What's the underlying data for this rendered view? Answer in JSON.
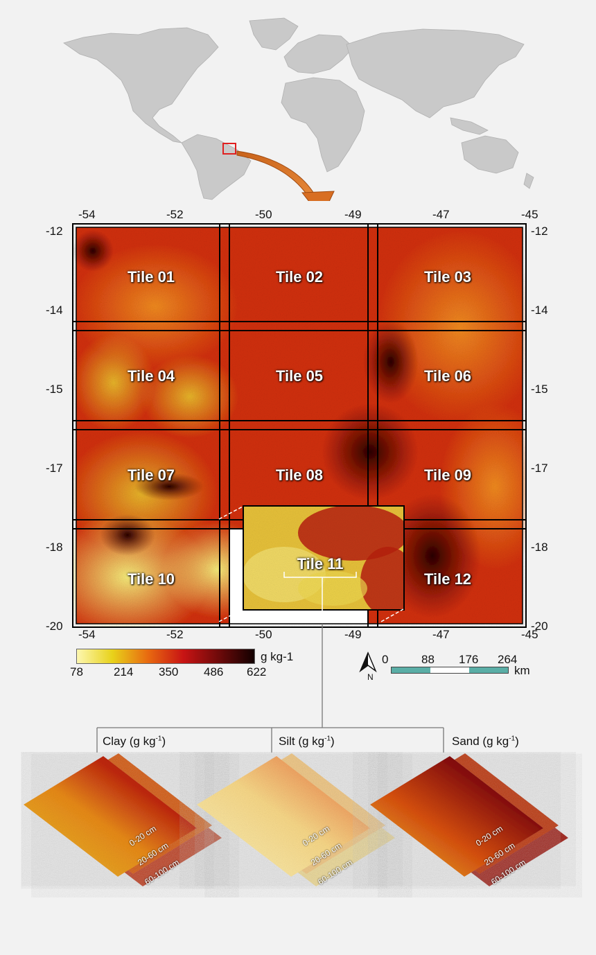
{
  "map": {
    "top_ticks": [
      "-54",
      "-52",
      "-50",
      "-49",
      "-47",
      "-45"
    ],
    "bottom_ticks": [
      "-54",
      "-52",
      "-50",
      "-49",
      "-47",
      "-45"
    ],
    "left_ticks": [
      "-12",
      "-14",
      "-15",
      "-17",
      "-18",
      "-20"
    ],
    "right_ticks": [
      "-12",
      "-14",
      "-15",
      "-17",
      "-18",
      "-20"
    ],
    "tiles": [
      "Tile 01",
      "Tile 02",
      "Tile 03",
      "Tile 04",
      "Tile 05",
      "Tile 06",
      "Tile 07",
      "Tile 08",
      "Tile 09",
      "Tile 10",
      "Tile 11",
      "Tile 12"
    ]
  },
  "legend": {
    "unit": "g kg-1",
    "values": [
      "78",
      "214",
      "350",
      "486",
      "622"
    ],
    "colors": [
      "#fdf7b0",
      "#e8d21a",
      "#e86a10",
      "#c81414",
      "#6e0a0a",
      "#120000"
    ]
  },
  "scalebar": {
    "north": "N",
    "values": [
      "0",
      "88",
      "176",
      "264"
    ],
    "unit": "km",
    "color": "#5aaea6"
  },
  "layers": [
    {
      "title": "Clay (g kg",
      "sup": "-1",
      "close": ")",
      "depths": [
        "0-20 cm",
        "20-60 cm",
        "60-100 cm"
      ]
    },
    {
      "title": "Silt (g kg",
      "sup": "-1",
      "close": ")",
      "depths": [
        "0-20 cm",
        "20-60 cm",
        "60-100 cm"
      ]
    },
    {
      "title": "Sand (g kg",
      "sup": "-1",
      "close": ")",
      "depths": [
        "0-20 cm",
        "20-60 cm",
        "60-100 cm"
      ]
    }
  ]
}
